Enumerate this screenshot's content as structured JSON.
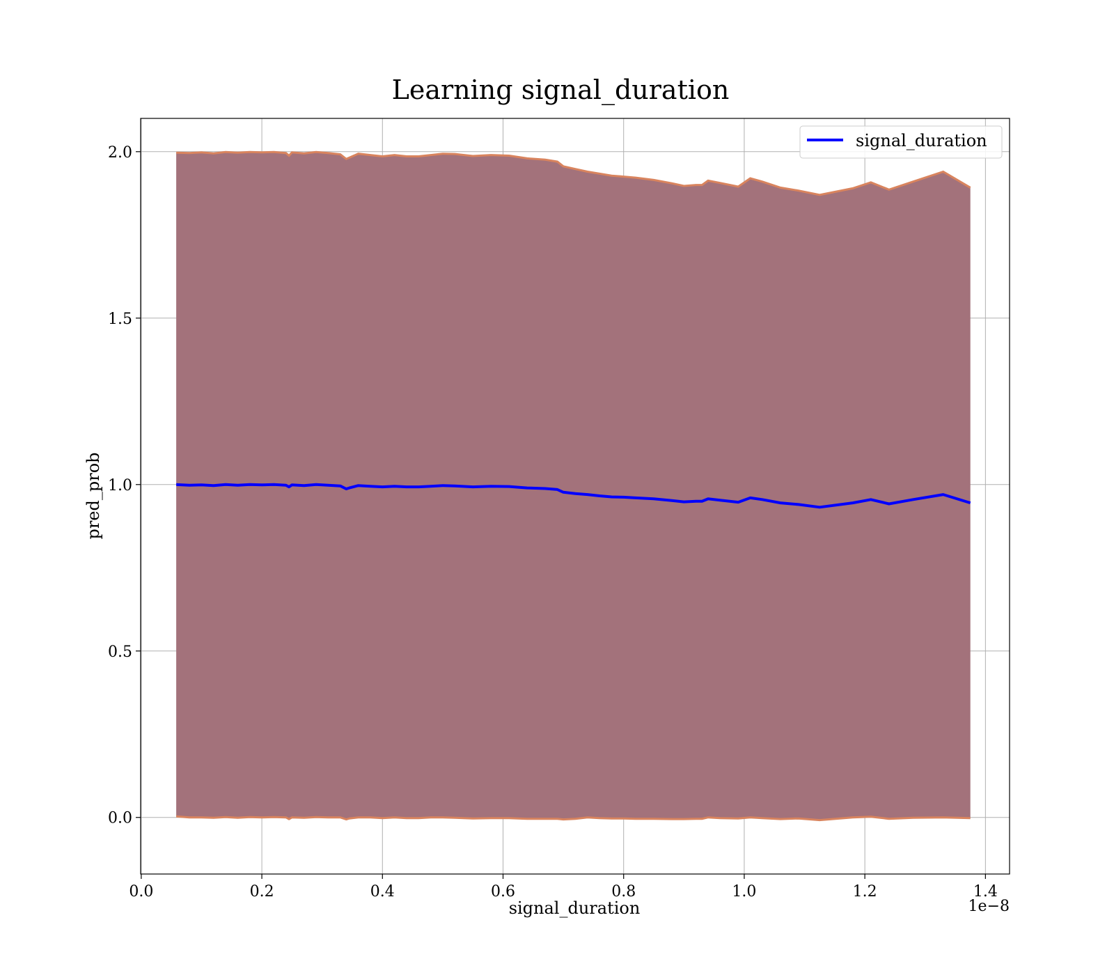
{
  "chart_data": {
    "type": "line",
    "title": "Learning signal_duration",
    "xlabel": "signal_duration",
    "ylabel": "pred_prob",
    "x_offset_label": "1e−8",
    "xlim": [
      -0.001,
      1.44
    ],
    "ylim": [
      -0.17,
      2.1
    ],
    "x_ticks": [
      0.0,
      0.2,
      0.4,
      0.6,
      0.8,
      1.0,
      1.2,
      1.4
    ],
    "x_tick_labels": [
      "0.0",
      "0.2",
      "0.4",
      "0.6",
      "0.8",
      "1.0",
      "1.2",
      "1.4"
    ],
    "y_ticks": [
      0.0,
      0.5,
      1.0,
      1.5,
      2.0
    ],
    "y_tick_labels": [
      "0.0",
      "0.5",
      "1.0",
      "1.5",
      "2.0"
    ],
    "grid": true,
    "legend_position": "top-right",
    "colors": {
      "line": "#0000ff",
      "band_fill": "#a3727b",
      "band_edge": "#d9845e",
      "grid": "#b0b0b0"
    },
    "series": [
      {
        "name": "signal_duration",
        "x": [
          0.058,
          0.08,
          0.1,
          0.12,
          0.14,
          0.16,
          0.18,
          0.2,
          0.22,
          0.24,
          0.245,
          0.25,
          0.27,
          0.29,
          0.31,
          0.33,
          0.34,
          0.345,
          0.36,
          0.38,
          0.4,
          0.42,
          0.44,
          0.46,
          0.48,
          0.5,
          0.52,
          0.55,
          0.58,
          0.61,
          0.64,
          0.67,
          0.69,
          0.7,
          0.72,
          0.74,
          0.76,
          0.78,
          0.8,
          0.82,
          0.85,
          0.88,
          0.9,
          0.92,
          0.93,
          0.94,
          0.96,
          0.99,
          1.01,
          1.03,
          1.06,
          1.09,
          1.125,
          1.18,
          1.21,
          1.24,
          1.28,
          1.33,
          1.375
        ],
        "values": [
          1.0,
          0.998,
          0.999,
          0.997,
          1.0,
          0.998,
          1.0,
          0.999,
          1.0,
          0.998,
          0.993,
          0.999,
          0.997,
          1.0,
          0.998,
          0.996,
          0.987,
          0.99,
          0.997,
          0.995,
          0.993,
          0.995,
          0.993,
          0.993,
          0.995,
          0.997,
          0.996,
          0.993,
          0.995,
          0.994,
          0.99,
          0.988,
          0.985,
          0.977,
          0.973,
          0.97,
          0.966,
          0.963,
          0.962,
          0.96,
          0.957,
          0.952,
          0.948,
          0.95,
          0.95,
          0.957,
          0.953,
          0.947,
          0.96,
          0.955,
          0.945,
          0.94,
          0.932,
          0.945,
          0.955,
          0.942,
          0.955,
          0.97,
          0.945
        ]
      }
    ],
    "band": {
      "upper": [
        1.997,
        1.996,
        1.998,
        1.995,
        1.999,
        1.997,
        1.999,
        1.998,
        1.999,
        1.996,
        1.988,
        1.998,
        1.995,
        1.999,
        1.996,
        1.992,
        1.978,
        1.982,
        1.994,
        1.99,
        1.986,
        1.99,
        1.986,
        1.986,
        1.99,
        1.994,
        1.993,
        1.987,
        1.99,
        1.988,
        1.98,
        1.976,
        1.97,
        1.956,
        1.948,
        1.94,
        1.934,
        1.928,
        1.925,
        1.922,
        1.915,
        1.905,
        1.897,
        1.9,
        1.9,
        1.913,
        1.906,
        1.895,
        1.92,
        1.91,
        1.892,
        1.883,
        1.87,
        1.89,
        1.908,
        1.886,
        1.91,
        1.94,
        1.892
      ],
      "lower": [
        0.003,
        0.0,
        0.0,
        -0.001,
        0.001,
        -0.001,
        0.001,
        0.0,
        0.001,
        0.0,
        -0.005,
        0.0,
        -0.001,
        0.001,
        0.0,
        0.0,
        -0.006,
        -0.003,
        0.0,
        0.0,
        -0.002,
        0.0,
        -0.002,
        -0.002,
        0.0,
        0.0,
        -0.001,
        -0.003,
        -0.002,
        -0.002,
        -0.004,
        -0.004,
        -0.004,
        -0.006,
        -0.004,
        0.0,
        -0.002,
        -0.003,
        -0.003,
        -0.004,
        -0.004,
        -0.005,
        -0.005,
        -0.004,
        -0.004,
        0.0,
        -0.002,
        -0.003,
        0.0,
        -0.002,
        -0.005,
        -0.003,
        -0.008,
        0.0,
        0.002,
        -0.004,
        -0.001,
        0.0,
        -0.002
      ]
    }
  },
  "legend": {
    "entries": [
      "signal_duration"
    ]
  }
}
